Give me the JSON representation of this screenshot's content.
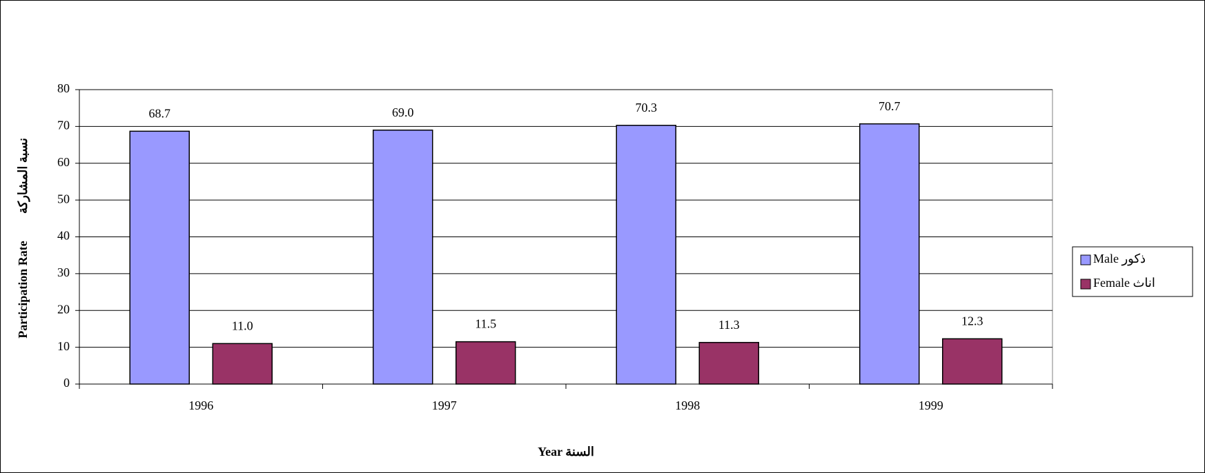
{
  "chart_data": {
    "type": "bar",
    "y_label": [
      "Participation Rate",
      "نسبة المشاركة"
    ],
    "x_label": "Year السنة",
    "categories": [
      "1996",
      "1997",
      "1998",
      "1999"
    ],
    "series": [
      {
        "name": "Male ذكور",
        "color": "#9999ff",
        "values": [
          68.7,
          69.0,
          70.3,
          70.7
        ],
        "value_labels": [
          "68.7",
          "69.0",
          "70.3",
          "70.7"
        ]
      },
      {
        "name": "Female اناث",
        "color": "#993366",
        "values": [
          11.0,
          11.5,
          11.3,
          12.3
        ],
        "value_labels": [
          "11.0",
          "11.5",
          "11.3",
          "12.3"
        ]
      }
    ],
    "ylim": [
      0,
      80
    ],
    "yticks": [
      0,
      10,
      20,
      30,
      40,
      50,
      60,
      70,
      80
    ],
    "grid": true,
    "legend": "right"
  }
}
